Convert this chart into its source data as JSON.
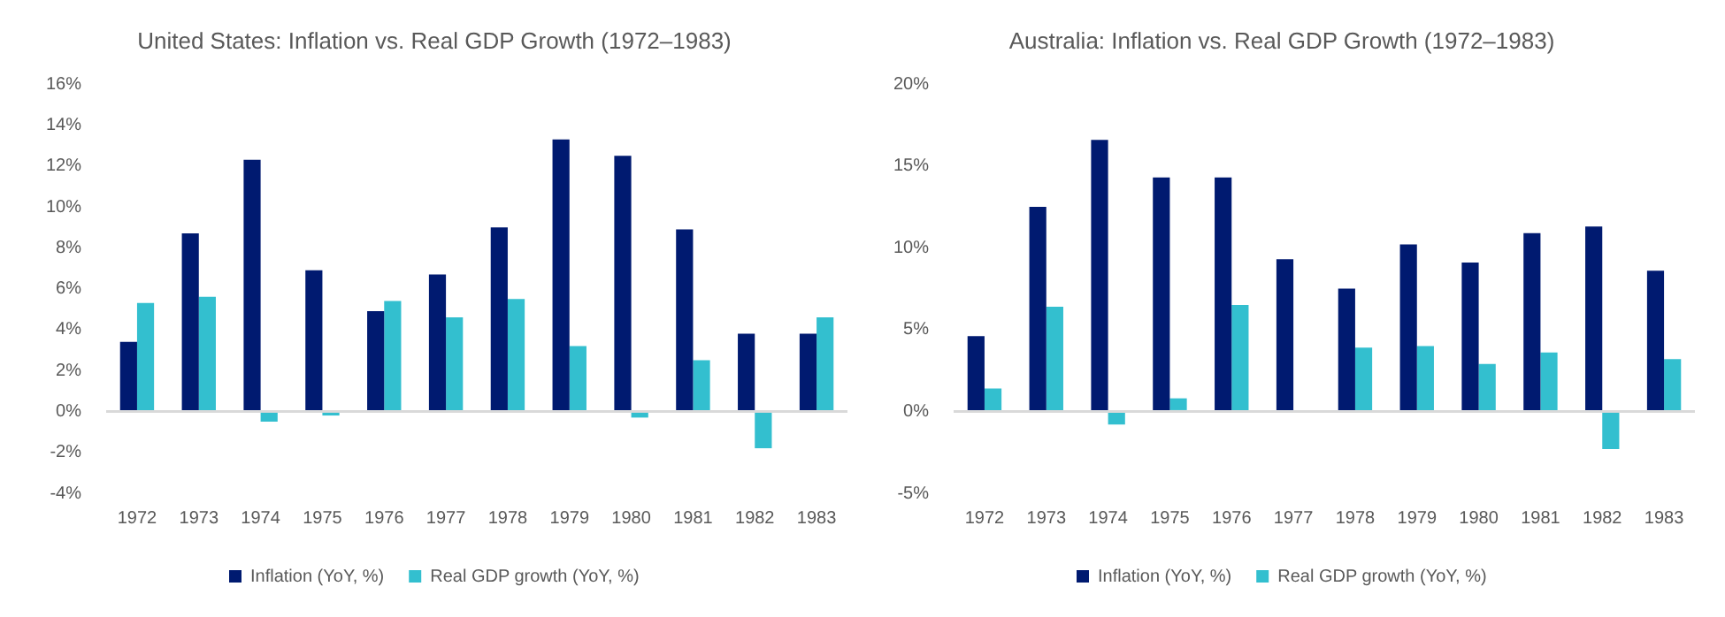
{
  "chart_data": [
    {
      "type": "bar",
      "title": "United States: Inflation vs. Real GDP Growth (1972–1983)",
      "categories": [
        "1972",
        "1973",
        "1974",
        "1975",
        "1976",
        "1977",
        "1978",
        "1979",
        "1980",
        "1981",
        "1982",
        "1983"
      ],
      "series": [
        {
          "name": "Inflation (YoY, %)",
          "color": "#001a70",
          "values": [
            3.4,
            8.7,
            12.3,
            6.9,
            4.9,
            6.7,
            9.0,
            13.3,
            12.5,
            8.9,
            3.8,
            3.8
          ]
        },
        {
          "name": "Real GDP growth (YoY, %)",
          "color": "#33bfcf",
          "values": [
            5.3,
            5.6,
            -0.5,
            -0.2,
            5.4,
            4.6,
            5.5,
            3.2,
            -0.3,
            2.5,
            -1.8,
            4.6
          ]
        }
      ],
      "ylim": [
        -4,
        16
      ],
      "yticks": [
        {
          "value": -4,
          "label": "-4%"
        },
        {
          "value": -2,
          "label": "-2%"
        },
        {
          "value": 0,
          "label": "0%"
        },
        {
          "value": 2,
          "label": "2%"
        },
        {
          "value": 4,
          "label": "4%"
        },
        {
          "value": 6,
          "label": "6%"
        },
        {
          "value": 8,
          "label": "8%"
        },
        {
          "value": 10,
          "label": "10%"
        },
        {
          "value": 12,
          "label": "12%"
        },
        {
          "value": 14,
          "label": "14%"
        },
        {
          "value": 16,
          "label": "16%"
        }
      ],
      "legend": "bottom"
    },
    {
      "type": "bar",
      "title": "Australia: Inflation vs. Real GDP Growth (1972–1983)",
      "categories": [
        "1972",
        "1973",
        "1974",
        "1975",
        "1976",
        "1977",
        "1978",
        "1979",
        "1980",
        "1981",
        "1982",
        "1983"
      ],
      "series": [
        {
          "name": "Inflation (YoY, %)",
          "color": "#001a70",
          "values": [
            4.6,
            12.5,
            16.6,
            14.3,
            14.3,
            9.3,
            7.5,
            10.2,
            9.1,
            10.9,
            11.3,
            8.6
          ]
        },
        {
          "name": "Real GDP growth (YoY, %)",
          "color": "#33bfcf",
          "values": [
            1.4,
            6.4,
            -0.8,
            0.8,
            6.5,
            0,
            3.9,
            4.0,
            2.9,
            3.6,
            -2.3,
            3.2
          ]
        }
      ],
      "ylim": [
        -5,
        20
      ],
      "yticks": [
        {
          "value": -5,
          "label": "-5%"
        },
        {
          "value": 0,
          "label": "0%"
        },
        {
          "value": 5,
          "label": "5%"
        },
        {
          "value": 10,
          "label": "10%"
        },
        {
          "value": 15,
          "label": "15%"
        },
        {
          "value": 20,
          "label": "20%"
        }
      ],
      "legend": "bottom"
    }
  ]
}
